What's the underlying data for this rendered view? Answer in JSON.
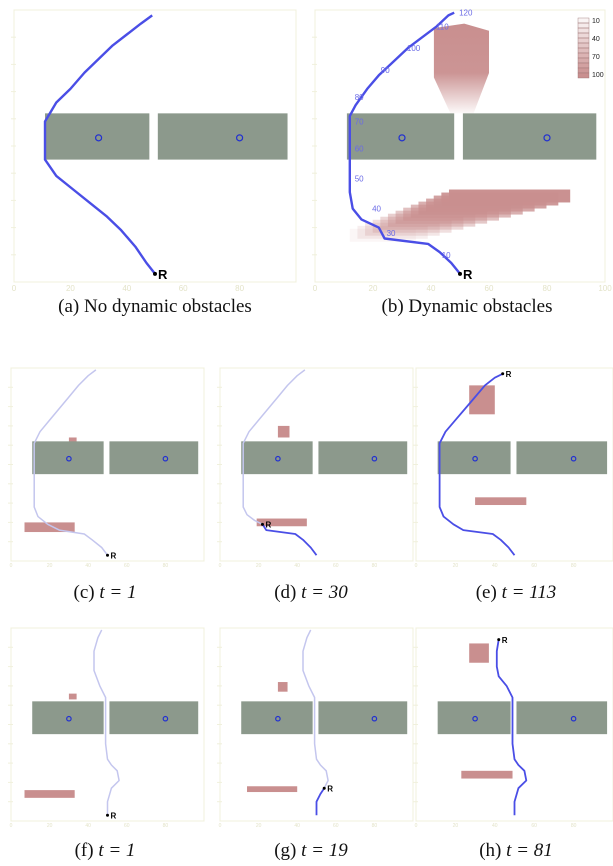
{
  "colors": {
    "wall": "#8c998c",
    "obstacle": "#c98f8f",
    "path_active": "#4a4ee6",
    "path_faded": "#c4c6ee",
    "goal": "#2230d0",
    "frame": "#f0f0dc",
    "grid": "#f0f0dc"
  },
  "robot_label": "R",
  "panels": [
    {
      "id": "a",
      "caption_letter": "(a)",
      "caption_text": "No dynamic obstacles",
      "x_ticks": [
        "0",
        "20",
        "40",
        "60",
        "80"
      ],
      "path_faded": [],
      "path_active": [
        [
          50,
          3
        ],
        [
          47,
          7
        ],
        [
          43,
          13
        ],
        [
          38,
          19
        ],
        [
          33,
          24
        ],
        [
          27,
          29
        ],
        [
          21,
          34
        ],
        [
          15,
          39
        ],
        [
          11,
          45
        ],
        [
          11,
          59
        ],
        [
          15,
          66
        ],
        [
          20,
          71
        ],
        [
          25,
          77
        ],
        [
          30,
          82
        ],
        [
          35,
          87
        ],
        [
          40,
          91
        ],
        [
          45,
          95
        ],
        [
          49,
          98
        ]
      ],
      "robot": [
        50,
        3
      ],
      "obstacles": [],
      "time_labels": [],
      "legend": null
    },
    {
      "id": "b",
      "caption_letter": "(b)",
      "caption_text": "Dynamic obstacles",
      "x_ticks": [
        "0",
        "20",
        "40",
        "60",
        "80",
        "100"
      ],
      "path_faded": [],
      "path_active": [
        [
          50,
          3
        ],
        [
          47,
          7
        ],
        [
          43,
          11
        ],
        [
          39,
          14
        ],
        [
          24,
          16
        ],
        [
          22,
          20
        ],
        [
          16,
          23
        ],
        [
          13,
          27
        ],
        [
          12,
          33
        ],
        [
          12,
          43
        ],
        [
          12,
          56
        ],
        [
          12,
          61
        ],
        [
          14,
          65
        ],
        [
          18,
          71
        ],
        [
          22,
          76
        ],
        [
          27,
          81
        ],
        [
          32,
          86
        ],
        [
          37,
          90
        ],
        [
          42,
          94
        ],
        [
          46,
          98
        ],
        [
          48,
          99
        ]
      ],
      "robot": [
        50,
        3
      ],
      "obstacles": [
        {
          "x": [
            12,
            88
          ],
          "y": [
            17,
            34
          ],
          "shape": "fan"
        },
        {
          "x": [
            41,
            60
          ],
          "y": [
            62,
            95
          ],
          "shape": "drop"
        }
      ],
      "time_labels": [
        {
          "text": "10",
          "x": 43,
          "y": 10
        },
        {
          "text": "30",
          "x": 24,
          "y": 18
        },
        {
          "text": "40",
          "x": 19,
          "y": 27
        },
        {
          "text": "50",
          "x": 13,
          "y": 38
        },
        {
          "text": "60",
          "x": 13,
          "y": 49
        },
        {
          "text": "70",
          "x": 13,
          "y": 59
        },
        {
          "text": "80",
          "x": 13,
          "y": 68
        },
        {
          "text": "90",
          "x": 22,
          "y": 78
        },
        {
          "text": "100",
          "x": 31,
          "y": 86
        },
        {
          "text": "110",
          "x": 41,
          "y": 94
        },
        {
          "text": "120",
          "x": 49,
          "y": 99
        }
      ],
      "legend": {
        "labels": [
          "10",
          "40",
          "70",
          "100"
        ]
      }
    },
    {
      "id": "c",
      "caption_letter": "(c)",
      "caption_text": "t = 1",
      "x_ticks": [
        "0",
        "20",
        "40",
        "60",
        "80"
      ],
      "path_faded": [
        [
          50,
          3
        ],
        [
          47,
          7
        ],
        [
          42,
          11
        ],
        [
          38,
          14
        ],
        [
          25,
          16
        ],
        [
          19,
          19
        ],
        [
          14,
          23
        ],
        [
          12,
          28
        ],
        [
          12,
          43
        ],
        [
          12,
          56
        ],
        [
          12,
          61
        ],
        [
          15,
          67
        ],
        [
          20,
          73
        ],
        [
          25,
          79
        ],
        [
          30,
          85
        ],
        [
          35,
          91
        ],
        [
          40,
          96
        ],
        [
          44,
          99
        ]
      ],
      "path_active": [],
      "robot": [
        50,
        3
      ],
      "obstacles": [
        {
          "x": [
            7,
            33
          ],
          "y": [
            15,
            20
          ],
          "shape": "rect"
        },
        {
          "x": [
            30,
            34
          ],
          "y": [
            61,
            64
          ],
          "shape": "rect"
        }
      ],
      "time_labels": [],
      "legend": null
    },
    {
      "id": "d",
      "caption_letter": "(d)",
      "caption_text": "t = 30",
      "x_ticks": [
        "0",
        "20",
        "40",
        "60",
        "80"
      ],
      "path_faded": [
        [
          22,
          19
        ],
        [
          18,
          21
        ],
        [
          14,
          24
        ],
        [
          12,
          28
        ],
        [
          12,
          43
        ],
        [
          12,
          56
        ],
        [
          12,
          61
        ],
        [
          15,
          67
        ],
        [
          20,
          73
        ],
        [
          25,
          79
        ],
        [
          30,
          85
        ],
        [
          35,
          91
        ],
        [
          40,
          96
        ],
        [
          44,
          99
        ]
      ],
      "path_active": [
        [
          50,
          3
        ],
        [
          47,
          7
        ],
        [
          43,
          11
        ],
        [
          39,
          14
        ],
        [
          24,
          16
        ],
        [
          22,
          19
        ]
      ],
      "robot": [
        22,
        19
      ],
      "obstacles": [
        {
          "x": [
            19,
            45
          ],
          "y": [
            18,
            22
          ],
          "shape": "rect"
        },
        {
          "x": [
            30,
            36
          ],
          "y": [
            64,
            70
          ],
          "shape": "rect"
        }
      ],
      "time_labels": [],
      "legend": null
    },
    {
      "id": "e",
      "caption_letter": "(e)",
      "caption_text": "t = 113",
      "x_ticks": [
        "0",
        "20",
        "40",
        "60",
        "80"
      ],
      "path_faded": [],
      "path_active": [
        [
          50,
          3
        ],
        [
          47,
          7
        ],
        [
          43,
          11
        ],
        [
          39,
          14
        ],
        [
          24,
          16
        ],
        [
          19,
          19
        ],
        [
          14,
          23
        ],
        [
          12,
          28
        ],
        [
          12,
          43
        ],
        [
          12,
          56
        ],
        [
          12,
          61
        ],
        [
          15,
          67
        ],
        [
          20,
          73
        ],
        [
          25,
          79
        ],
        [
          30,
          85
        ],
        [
          35,
          91
        ],
        [
          40,
          95
        ],
        [
          44,
          97
        ]
      ],
      "robot": [
        44,
        97
      ],
      "obstacles": [
        {
          "x": [
            30,
            56
          ],
          "y": [
            29,
            33
          ],
          "shape": "rect"
        },
        {
          "x": [
            27,
            40
          ],
          "y": [
            76,
            91
          ],
          "shape": "rect"
        }
      ],
      "time_labels": [],
      "legend": null
    },
    {
      "id": "f",
      "caption_letter": "(f)",
      "caption_text": "t = 1",
      "x_ticks": [
        "0",
        "20",
        "40",
        "60",
        "80"
      ],
      "path_faded": [
        [
          50,
          3
        ],
        [
          50,
          10
        ],
        [
          52,
          17
        ],
        [
          56,
          21
        ],
        [
          55,
          26
        ],
        [
          52,
          29
        ],
        [
          50,
          32
        ],
        [
          49,
          40
        ],
        [
          49,
          55
        ],
        [
          49,
          64
        ],
        [
          46,
          70
        ],
        [
          43,
          78
        ],
        [
          43,
          88
        ],
        [
          45,
          95
        ],
        [
          47,
          99
        ]
      ],
      "path_active": [],
      "robot": [
        50,
        3
      ],
      "obstacles": [
        {
          "x": [
            7,
            33
          ],
          "y": [
            12,
            16
          ],
          "shape": "rect"
        },
        {
          "x": [
            30,
            34
          ],
          "y": [
            63,
            66
          ],
          "shape": "rect"
        }
      ],
      "time_labels": [],
      "legend": null
    },
    {
      "id": "g",
      "caption_letter": "(g)",
      "caption_text": "t = 19",
      "x_ticks": [
        "0",
        "20",
        "40",
        "60",
        "80"
      ],
      "path_faded": [
        [
          54,
          17
        ],
        [
          56,
          21
        ],
        [
          55,
          26
        ],
        [
          52,
          29
        ],
        [
          50,
          32
        ],
        [
          49,
          40
        ],
        [
          49,
          55
        ],
        [
          49,
          64
        ],
        [
          46,
          70
        ],
        [
          43,
          78
        ],
        [
          43,
          88
        ],
        [
          45,
          95
        ],
        [
          47,
          99
        ]
      ],
      "path_active": [
        [
          50,
          3
        ],
        [
          50,
          10
        ],
        [
          52,
          14
        ],
        [
          54,
          17
        ]
      ],
      "robot": [
        54,
        17
      ],
      "obstacles": [
        {
          "x": [
            14,
            40
          ],
          "y": [
            15,
            18
          ],
          "shape": "rect"
        },
        {
          "x": [
            30,
            35
          ],
          "y": [
            67,
            72
          ],
          "shape": "rect"
        }
      ],
      "time_labels": [],
      "legend": null
    },
    {
      "id": "h",
      "caption_letter": "(h)",
      "caption_text": "t = 81",
      "x_ticks": [
        "0",
        "20",
        "40",
        "60",
        "80"
      ],
      "path_faded": [],
      "path_active": [
        [
          50,
          3
        ],
        [
          50,
          10
        ],
        [
          52,
          17
        ],
        [
          56,
          21
        ],
        [
          55,
          26
        ],
        [
          52,
          29
        ],
        [
          50,
          32
        ],
        [
          49,
          40
        ],
        [
          49,
          55
        ],
        [
          49,
          64
        ],
        [
          46,
          70
        ],
        [
          42,
          75
        ],
        [
          41,
          80
        ],
        [
          41,
          88
        ],
        [
          42,
          94
        ]
      ],
      "robot": [
        42,
        94
      ],
      "obstacles": [
        {
          "x": [
            23,
            49
          ],
          "y": [
            22,
            26
          ],
          "shape": "rect"
        },
        {
          "x": [
            27,
            37
          ],
          "y": [
            82,
            92
          ],
          "shape": "rect"
        }
      ],
      "time_labels": [],
      "legend": null
    }
  ],
  "walls": [
    {
      "x": [
        11,
        48
      ],
      "y": [
        45,
        62
      ],
      "goal": [
        30,
        53
      ]
    },
    {
      "x": [
        51,
        97
      ],
      "y": [
        45,
        62
      ],
      "goal": [
        80,
        53
      ]
    }
  ]
}
